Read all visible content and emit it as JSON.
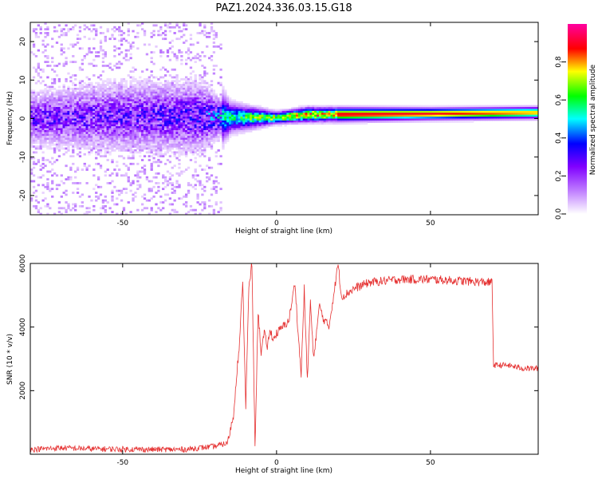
{
  "chart_data": [
    {
      "type": "heatmap",
      "title": "PAZ1.2024.336.03.15.G18",
      "xlabel": "Height of straight line (km)",
      "ylabel": "Frequency (Hz)",
      "xlim": [
        -80,
        85
      ],
      "ylim": [
        -25,
        25
      ],
      "xticks": [
        -50,
        0,
        50
      ],
      "yticks": [
        -20,
        -10,
        0,
        10,
        20
      ],
      "colorbar": {
        "label": "Normalized spectral amplitude",
        "range": [
          0,
          1
        ],
        "ticks": [
          0.0,
          0.2,
          0.4,
          0.6,
          0.8
        ],
        "colormap": [
          "#ffffff",
          "#c080ff",
          "#8000ff",
          "#0000ff",
          "#00ffff",
          "#00ff00",
          "#ffff00",
          "#ff0000",
          "#ff00a0"
        ]
      },
      "ridge": [
        {
          "x": -80,
          "y": 0,
          "amp": 0.3,
          "spread": 6
        },
        {
          "x": -50,
          "y": 0.5,
          "amp": 0.3,
          "spread": 8
        },
        {
          "x": -25,
          "y": 0.5,
          "amp": 0.35,
          "spread": 8
        },
        {
          "x": -15,
          "y": 0.2,
          "amp": 0.6,
          "spread": 2
        },
        {
          "x": 0,
          "y": 0.2,
          "amp": 0.8,
          "spread": 0.8
        },
        {
          "x": 10,
          "y": 1,
          "amp": 0.9,
          "spread": 1
        },
        {
          "x": 50,
          "y": 1.2,
          "amp": 0.9,
          "spread": 0.8
        },
        {
          "x": 85,
          "y": 1.5,
          "amp": 0.8,
          "spread": 0.8
        }
      ]
    },
    {
      "type": "line",
      "xlabel": "Height of straight line (km)",
      "ylabel": "SNR (10 * v/v)",
      "xlim": [
        -80,
        85
      ],
      "ylim": [
        0,
        6000
      ],
      "xticks": [
        -50,
        0,
        50
      ],
      "yticks": [
        2000,
        4000,
        6000
      ],
      "series": [
        {
          "color": "#e53030",
          "x": [
            -80,
            -70,
            -60,
            -50,
            -40,
            -30,
            -20,
            -16,
            -14,
            -13,
            -12,
            -11,
            -10,
            -9,
            -8,
            -7,
            -6,
            -5,
            -4,
            -3,
            -2,
            -1,
            0,
            2,
            4,
            6,
            7,
            8,
            9,
            10,
            11,
            12,
            14,
            15,
            17,
            19,
            20,
            21,
            22,
            25,
            30,
            40,
            50,
            60,
            70,
            70.5,
            75,
            80,
            85
          ],
          "y": [
            150,
            200,
            170,
            160,
            150,
            150,
            250,
            350,
            1200,
            2500,
            3500,
            5500,
            1500,
            5200,
            6000,
            200,
            4500,
            3200,
            3800,
            3400,
            3900,
            3600,
            3800,
            4000,
            4200,
            5400,
            3800,
            2500,
            5200,
            2300,
            4800,
            3000,
            4700,
            4300,
            4000,
            5300,
            6000,
            5000,
            5000,
            5200,
            5400,
            5500,
            5500,
            5450,
            5400,
            2800,
            2800,
            2700,
            2700
          ]
        }
      ]
    }
  ]
}
